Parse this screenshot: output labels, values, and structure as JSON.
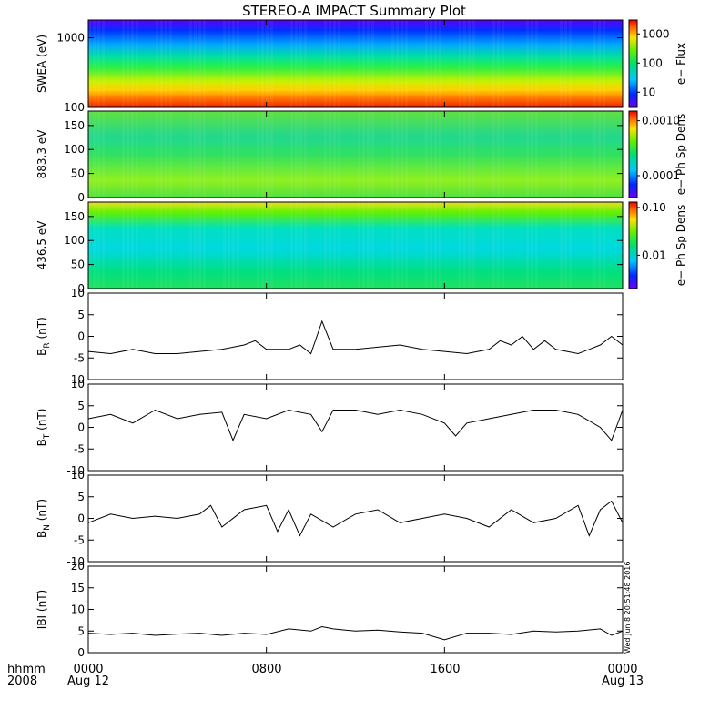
{
  "title": "STEREO-A IMPACT Summary Plot",
  "footer": {
    "hhmm_label": "hhmm",
    "year_label": "2008",
    "time_ticks": [
      "0000",
      "0800",
      "1600",
      "0000"
    ],
    "date_labels": [
      "Aug 12",
      "Aug 13"
    ]
  },
  "timestamp": "Wed Jun 8 20:51:48 2016",
  "chart_data": [
    {
      "type": "heatmap",
      "ylabel": "SWEA (eV)",
      "ylog": true,
      "ylim": [
        100,
        1800
      ],
      "yticks": [
        "100",
        "1000"
      ],
      "colorbar": {
        "label": "e− Flux",
        "ticks": [
          "10",
          "100",
          "1000"
        ],
        "range": [
          3,
          3000
        ],
        "log": true
      },
      "x_range_hours": [
        0,
        24
      ]
    },
    {
      "type": "heatmap",
      "ylabel": "883.3 eV",
      "ylim": [
        0,
        180
      ],
      "yticks": [
        "0",
        "50",
        "100",
        "150"
      ],
      "colorbar": {
        "label": "e− Ph Sp Dens",
        "ticks": [
          "0.0001",
          "0.0010"
        ],
        "range": [
          4e-05,
          0.0015
        ],
        "log": true
      },
      "x_range_hours": [
        0,
        24
      ]
    },
    {
      "type": "heatmap",
      "ylabel": "436.5 eV",
      "ylim": [
        0,
        180
      ],
      "yticks": [
        "0",
        "50",
        "100",
        "150"
      ],
      "colorbar": {
        "label": "e− Ph Sp Dens",
        "ticks": [
          "0.01",
          "0.10"
        ],
        "range": [
          0.002,
          0.13
        ],
        "log": true
      },
      "x_range_hours": [
        0,
        24
      ]
    },
    {
      "type": "line",
      "ylabel": "B_R (nT)",
      "ylabel_main": "B",
      "ylabel_sub": "R",
      "ylabel_unit": "(nT)",
      "ylim": [
        -10,
        10
      ],
      "yticks": [
        "-10",
        "-5",
        "0",
        "5",
        "10"
      ],
      "x": [
        0,
        1,
        2,
        3,
        4,
        5,
        6,
        7,
        7.5,
        8,
        9,
        9.5,
        10,
        10.5,
        11,
        12,
        13,
        14,
        15,
        16,
        17,
        18,
        18.5,
        19,
        19.5,
        20,
        20.5,
        21,
        22,
        22.5,
        23,
        23.5,
        24
      ],
      "values": [
        -3.5,
        -4,
        -3,
        -4,
        -4,
        -3.5,
        -3,
        -2,
        -1,
        -3,
        -3,
        -2,
        -4,
        3.5,
        -3,
        -3,
        -2.5,
        -2,
        -3,
        -3.5,
        -4,
        -3,
        -1,
        -2,
        0,
        -3,
        -1,
        -3,
        -4,
        -3,
        -2,
        0,
        -2
      ]
    },
    {
      "type": "line",
      "ylabel": "B_T (nT)",
      "ylabel_main": "B",
      "ylabel_sub": "T",
      "ylabel_unit": "(nT)",
      "ylim": [
        -10,
        10
      ],
      "yticks": [
        "-10",
        "-5",
        "0",
        "5",
        "10"
      ],
      "x": [
        0,
        1,
        2,
        3,
        4,
        5,
        6,
        6.5,
        7,
        8,
        9,
        10,
        10.5,
        11,
        12,
        13,
        14,
        15,
        16,
        16.5,
        17,
        18,
        19,
        20,
        21,
        22,
        23,
        23.5,
        24
      ],
      "values": [
        2,
        3,
        1,
        4,
        2,
        3,
        3.5,
        -3,
        3,
        2,
        4,
        3,
        -1,
        4,
        4,
        3,
        4,
        3,
        1,
        -2,
        1,
        2,
        3,
        4,
        4,
        3,
        0,
        -3,
        4
      ]
    },
    {
      "type": "line",
      "ylabel": "B_N (nT)",
      "ylabel_main": "B",
      "ylabel_sub": "N",
      "ylabel_unit": "(nT)",
      "ylim": [
        -10,
        10
      ],
      "yticks": [
        "-10",
        "-5",
        "0",
        "5",
        "10"
      ],
      "x": [
        0,
        1,
        2,
        3,
        4,
        5,
        5.5,
        6,
        7,
        8,
        8.5,
        9,
        9.5,
        10,
        11,
        12,
        13,
        14,
        15,
        16,
        17,
        18,
        19,
        20,
        21,
        22,
        22.5,
        23,
        23.5,
        24
      ],
      "values": [
        -1,
        1,
        0,
        0.5,
        0,
        1,
        3,
        -2,
        2,
        3,
        -3,
        2,
        -4,
        1,
        -2,
        1,
        2,
        -1,
        0,
        1,
        0,
        -2,
        2,
        -1,
        0,
        3,
        -4,
        2,
        4,
        -1
      ]
    },
    {
      "type": "line",
      "ylabel": "|B| (nT)",
      "ylabel_text": "IBI (nT)",
      "ylim": [
        0,
        20
      ],
      "yticks": [
        "0",
        "5",
        "10",
        "15",
        "20"
      ],
      "x": [
        0,
        1,
        2,
        3,
        4,
        5,
        6,
        7,
        8,
        9,
        10,
        10.5,
        11,
        12,
        13,
        14,
        15,
        16,
        17,
        18,
        19,
        20,
        21,
        22,
        23,
        23.5,
        24
      ],
      "values": [
        4.5,
        4.2,
        4.5,
        4,
        4.3,
        4.5,
        4,
        4.5,
        4.2,
        5.5,
        5,
        6,
        5.5,
        5,
        5.2,
        4.8,
        4.5,
        3,
        4.5,
        4.5,
        4.2,
        5,
        4.8,
        5,
        5.5,
        4,
        5
      ]
    }
  ]
}
